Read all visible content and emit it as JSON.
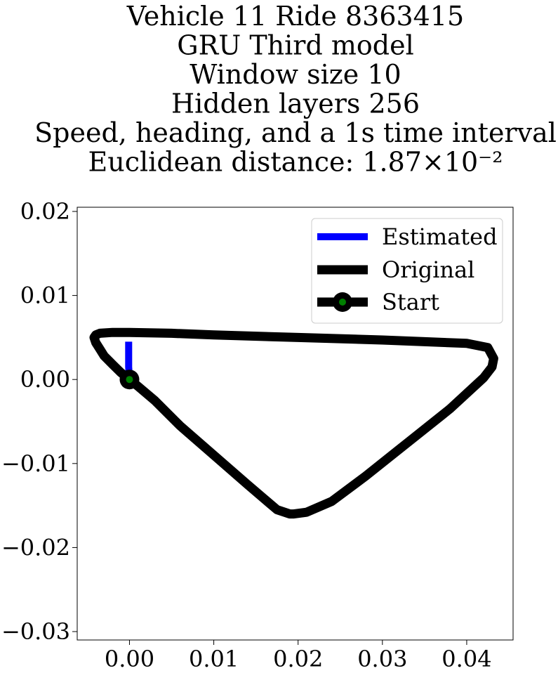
{
  "chart_data": {
    "type": "line",
    "title_lines": [
      "Vehicle 11 Ride 8363415",
      "GRU Third model",
      "Window size 10",
      "Hidden layers 256",
      "Speed, heading, and a 1s time interval",
      "Euclidean distance: 1.87×10⁻²"
    ],
    "xlabel": "",
    "ylabel": "",
    "xlim": [
      -0.0062,
      0.0455
    ],
    "ylim": [
      -0.031,
      0.0205
    ],
    "x_ticks": [
      0.0,
      0.01,
      0.02,
      0.03,
      0.04
    ],
    "x_tick_labels": [
      "0.00",
      "0.01",
      "0.02",
      "0.03",
      "0.04"
    ],
    "y_ticks": [
      0.02,
      0.01,
      0.0,
      -0.01,
      -0.02,
      -0.03
    ],
    "y_tick_labels": [
      "0.02",
      "0.01",
      "0.00",
      "−0.01",
      "−0.02",
      "−0.03"
    ],
    "grid": false,
    "legend_position": "top-right",
    "series": [
      {
        "name": "Estimated",
        "color": "#0000ff",
        "x": [
          0.0,
          -0.0001,
          -0.0001,
          -0.0001
        ],
        "y": [
          0.0,
          0.0015,
          0.003,
          0.0045
        ]
      },
      {
        "name": "Original",
        "color": "#000000",
        "x": [
          0.0,
          -0.001,
          -0.002,
          -0.003,
          -0.0035,
          -0.004,
          -0.0042,
          -0.004,
          -0.0035,
          -0.002,
          0.0,
          0.005,
          0.01,
          0.02,
          0.03,
          0.035,
          0.04,
          0.0425,
          0.0432,
          0.043,
          0.042,
          0.038,
          0.033,
          0.028,
          0.024,
          0.021,
          0.0195,
          0.019,
          0.0175,
          0.014,
          0.01,
          0.006,
          0.003,
          0.001,
          0.0
        ],
        "y": [
          0.0,
          0.0008,
          0.0018,
          0.0028,
          0.0036,
          0.0044,
          0.005,
          0.0053,
          0.0055,
          0.0056,
          0.0056,
          0.0055,
          0.0053,
          0.005,
          0.0047,
          0.0045,
          0.0043,
          0.0038,
          0.0025,
          0.0015,
          0.0002,
          -0.0035,
          -0.0075,
          -0.0115,
          -0.0145,
          -0.0158,
          -0.016,
          -0.016,
          -0.0155,
          -0.0125,
          -0.009,
          -0.0055,
          -0.0025,
          -0.0008,
          0.0
        ]
      },
      {
        "name": "Start",
        "color": "#000000",
        "marker_face": "#008000",
        "x": [
          0.0
        ],
        "y": [
          0.0
        ]
      }
    ]
  }
}
